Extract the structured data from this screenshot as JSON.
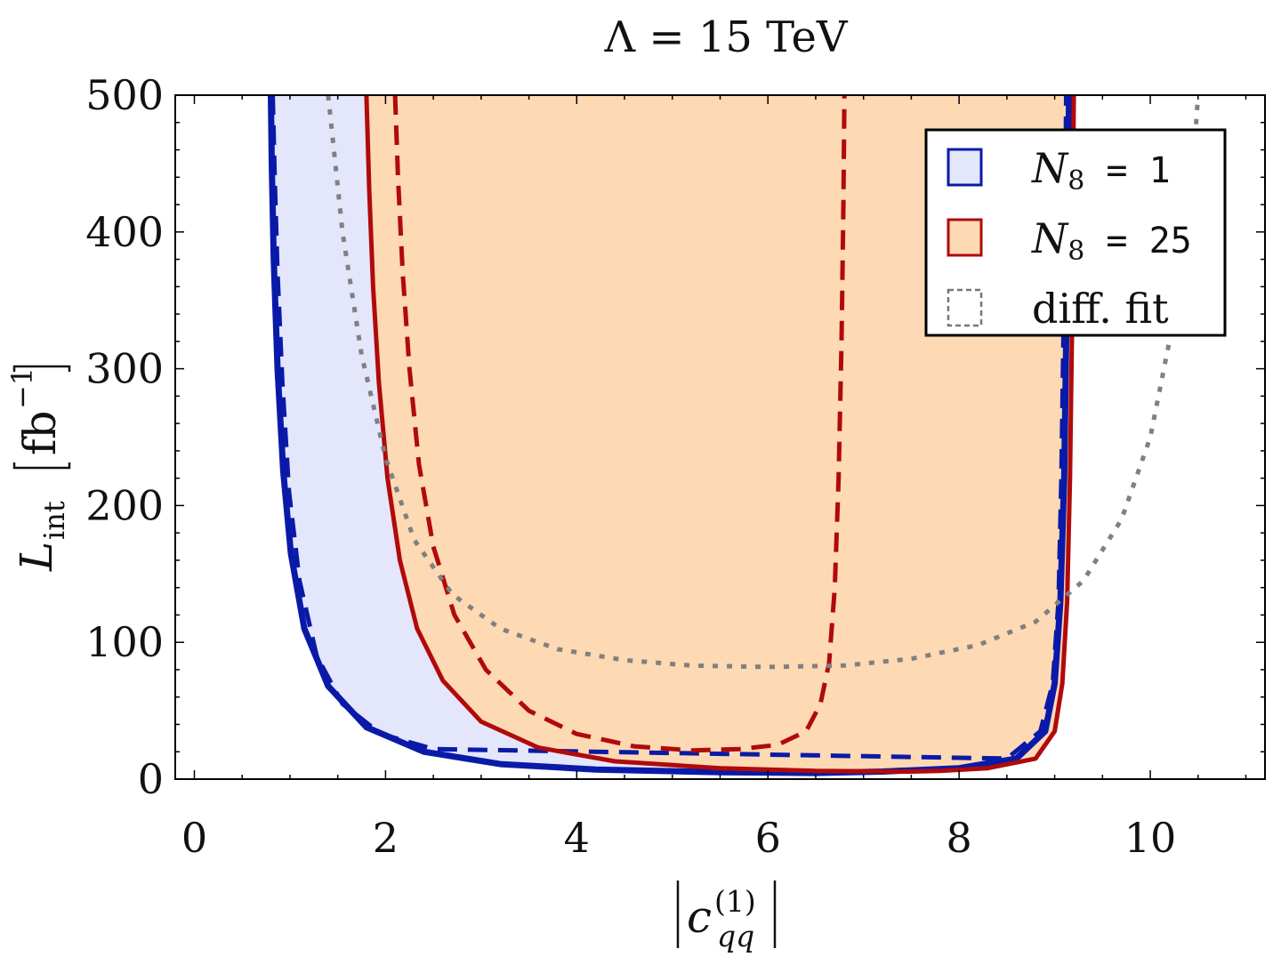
{
  "chart_data": {
    "type": "line",
    "title_prefix": "Λ",
    "title_suffix": " = 15 TeV",
    "xlabel_main": "c",
    "xlabel_sup": "(1)",
    "xlabel_sub": "qq",
    "ylabel_main": "L",
    "ylabel_sub": "int",
    "ylabel_unit_base": "fb",
    "ylabel_unit_exp": "−1",
    "xlim": [
      -0.2,
      11.2
    ],
    "ylim": [
      0,
      500
    ],
    "x_ticks": [
      "0",
      "2",
      "4",
      "6",
      "8",
      "10"
    ],
    "y_ticks": [
      "0",
      "100",
      "200",
      "300",
      "400",
      "500"
    ],
    "grid": false,
    "legend_position": "top-right",
    "legend": [
      {
        "name_var": "N",
        "name_sub": "8",
        "name_rest": " = 1",
        "style": "filled-box",
        "edge": "#0a1aa8",
        "fill": "#e4e6fb"
      },
      {
        "name_var": "N",
        "name_sub": "8",
        "name_rest": " = 25",
        "style": "filled-box",
        "edge": "#b00a0a",
        "fill": "#fdd9b4"
      },
      {
        "name_var": "",
        "name_sub": "",
        "name_rest": "diff. fit",
        "style": "dashed-box",
        "edge": "#777777",
        "fill": "none"
      }
    ],
    "series": [
      {
        "id": "n1-solid",
        "color": "#0a1aa8",
        "fill": "#e4e6fb",
        "dash": "solid",
        "x_left": [
          0.8,
          0.81,
          0.83,
          0.87,
          0.93,
          1.01,
          1.15,
          1.4,
          1.8,
          2.4,
          3.2,
          4.2,
          5.5,
          6.5
        ],
        "y_left": [
          500,
          450,
          380,
          300,
          225,
          165,
          110,
          68,
          38,
          20,
          11,
          7,
          5,
          4.5
        ],
        "x_right": [
          9.15,
          9.14,
          9.12,
          9.1,
          9.06,
          9.0,
          8.9,
          8.6,
          8.0,
          7.2
        ],
        "y_right": [
          500,
          420,
          320,
          220,
          130,
          70,
          35,
          15,
          8,
          5.5
        ]
      },
      {
        "id": "n1-dashed",
        "color": "#0a1aa8",
        "dash": "dashed",
        "x_left": [
          0.82,
          0.84,
          0.87,
          0.92,
          0.99,
          1.1,
          1.28,
          1.55,
          1.95,
          2.5
        ],
        "y_left": [
          500,
          440,
          370,
          290,
          210,
          145,
          90,
          55,
          33,
          22
        ],
        "x_right": [
          9.12,
          9.11,
          9.09,
          9.07,
          9.04,
          8.98,
          8.85,
          8.5
        ],
        "y_right": [
          500,
          420,
          320,
          220,
          130,
          70,
          35,
          15
        ]
      },
      {
        "id": "n25-solid",
        "color": "#b00a0a",
        "fill": "#fdd9b4",
        "dash": "solid",
        "x_left": [
          1.8,
          1.83,
          1.87,
          1.93,
          2.02,
          2.15,
          2.33,
          2.6,
          3.0,
          3.6,
          4.4,
          5.5,
          6.5,
          7.5
        ],
        "y_left": [
          500,
          430,
          360,
          290,
          220,
          160,
          110,
          72,
          42,
          23,
          13,
          8,
          6,
          5.5
        ],
        "x_right": [
          9.2,
          9.19,
          9.18,
          9.16,
          9.13,
          9.08,
          9.0,
          8.8,
          8.3,
          7.8
        ],
        "y_right": [
          500,
          420,
          320,
          220,
          130,
          70,
          35,
          15,
          8,
          6
        ]
      },
      {
        "id": "n25-dashed",
        "color": "#b00a0a",
        "dash": "dashed",
        "x_left": [
          2.1,
          2.13,
          2.18,
          2.25,
          2.35,
          2.5,
          2.72,
          3.05,
          3.5,
          4.0,
          4.6,
          5.2
        ],
        "y_left": [
          500,
          440,
          370,
          300,
          230,
          170,
          120,
          80,
          50,
          33,
          24,
          21
        ],
        "x_right": [
          6.8,
          6.79,
          6.77,
          6.74,
          6.7,
          6.64,
          6.55,
          6.4,
          6.1,
          5.7
        ],
        "y_right": [
          500,
          420,
          320,
          220,
          140,
          85,
          55,
          35,
          25,
          22
        ]
      },
      {
        "id": "diff-fit",
        "color": "#808080",
        "dash": "dotted",
        "x": [
          1.4,
          1.55,
          1.75,
          2.0,
          2.3,
          2.7,
          3.2,
          3.8,
          4.5,
          5.2,
          6.0,
          6.8,
          7.5,
          8.2,
          8.8,
          9.3,
          9.7,
          10.0,
          10.2,
          10.35,
          10.45,
          10.5
        ],
        "y": [
          500,
          400,
          310,
          235,
          175,
          135,
          110,
          95,
          87,
          83,
          82,
          83,
          88,
          98,
          115,
          145,
          190,
          250,
          320,
          390,
          450,
          500
        ]
      }
    ]
  }
}
